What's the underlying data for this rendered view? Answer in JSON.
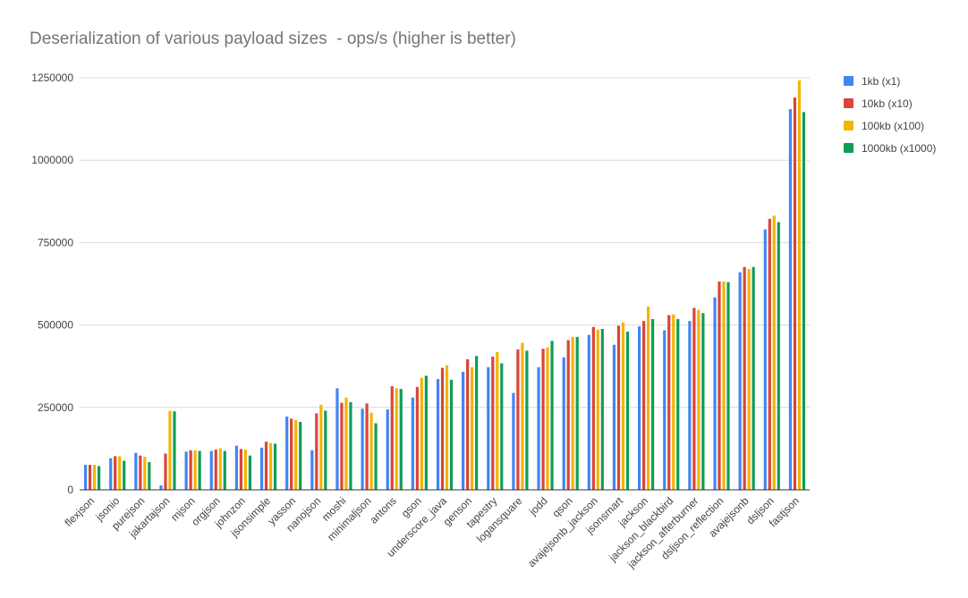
{
  "chart_data": {
    "type": "bar",
    "title": "Deserialization of various payload sizes  - ops/s (higher is better)",
    "xlabel": "",
    "ylabel": "",
    "ylim": [
      0,
      1250000
    ],
    "yticks": [
      "0",
      "250000",
      "500000",
      "750000",
      "1000000",
      "1250000"
    ],
    "ytick_values": [
      0,
      250000,
      500000,
      750000,
      1000000,
      1250000
    ],
    "grid": true,
    "legend_position": "right",
    "categories": [
      "flexjson",
      "jsonio",
      "purejson",
      "jakartajson",
      "mjson",
      "orgjson",
      "johnzon",
      "jsonsimple",
      "yasson",
      "nanojson",
      "moshi",
      "minimaljson",
      "antons",
      "gson",
      "underscore_java",
      "genson",
      "tapestry",
      "logansquare",
      "jodd",
      "qson",
      "avajejsonb_jackson",
      "jsonsmart",
      "jackson",
      "jackson_blackbird",
      "jackson_afterburner",
      "dsljson_reflection",
      "avajejsonb",
      "dsljson",
      "fastjson"
    ],
    "series": [
      {
        "name": "1kb (x1)",
        "color": "#4285f4",
        "values": [
          76000,
          96000,
          112000,
          14000,
          116000,
          118000,
          134000,
          128000,
          222000,
          120000,
          308000,
          246000,
          244000,
          280000,
          336000,
          358000,
          372000,
          294000,
          372000,
          402000,
          470000,
          440000,
          496000,
          484000,
          512000,
          584000,
          660000,
          790000,
          1155000
        ]
      },
      {
        "name": "10kb (x10)",
        "color": "#db4437",
        "values": [
          76000,
          102000,
          104000,
          110000,
          120000,
          122000,
          124000,
          146000,
          216000,
          232000,
          264000,
          262000,
          314000,
          312000,
          370000,
          396000,
          404000,
          426000,
          428000,
          454000,
          494000,
          498000,
          512000,
          530000,
          552000,
          632000,
          676000,
          822000,
          1190000
        ]
      },
      {
        "name": "100kb (x100)",
        "color": "#f4b400",
        "values": [
          76000,
          102000,
          100000,
          240000,
          120000,
          126000,
          122000,
          142000,
          212000,
          258000,
          280000,
          234000,
          308000,
          340000,
          378000,
          372000,
          418000,
          446000,
          432000,
          464000,
          486000,
          508000,
          556000,
          532000,
          546000,
          632000,
          670000,
          832000,
          1242000
        ]
      },
      {
        "name": "1000kb (x1000)",
        "color": "#0f9d58",
        "values": [
          72000,
          88000,
          84000,
          238000,
          118000,
          118000,
          104000,
          140000,
          206000,
          240000,
          266000,
          202000,
          306000,
          346000,
          334000,
          406000,
          384000,
          422000,
          452000,
          464000,
          488000,
          480000,
          518000,
          518000,
          536000,
          630000,
          676000,
          812000,
          1146000
        ]
      }
    ]
  }
}
